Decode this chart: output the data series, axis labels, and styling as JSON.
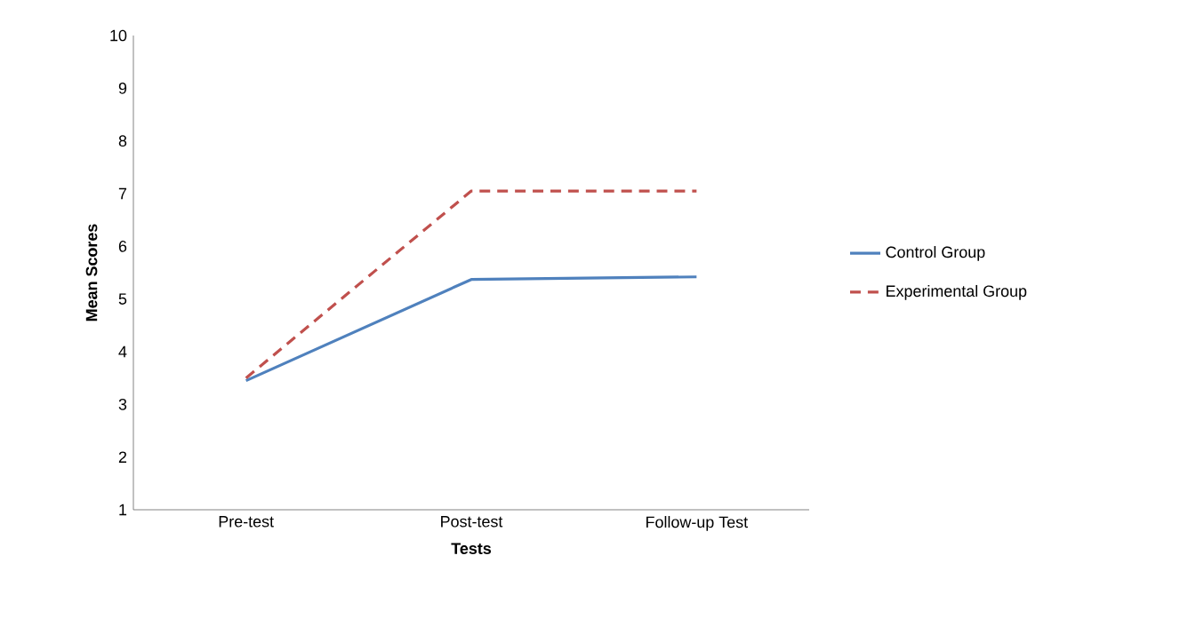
{
  "chart_data": {
    "type": "line",
    "xlabel": "Tests",
    "ylabel": "Mean Scores",
    "categories": [
      "Pre-test",
      "Post-test",
      "Follow-up Test"
    ],
    "series": [
      {
        "name": "Control Group",
        "color": "#4f81bd",
        "line_style": "solid",
        "values": [
          3.45,
          5.37,
          5.42
        ]
      },
      {
        "name": "Experimental Group",
        "color": "#c0504d",
        "line_style": "dashed",
        "values": [
          3.5,
          7.05,
          7.05
        ]
      }
    ],
    "ylim": [
      1,
      10
    ],
    "yticks": [
      1,
      2,
      3,
      4,
      5,
      6,
      7,
      8,
      9,
      10
    ],
    "legend": "right"
  }
}
